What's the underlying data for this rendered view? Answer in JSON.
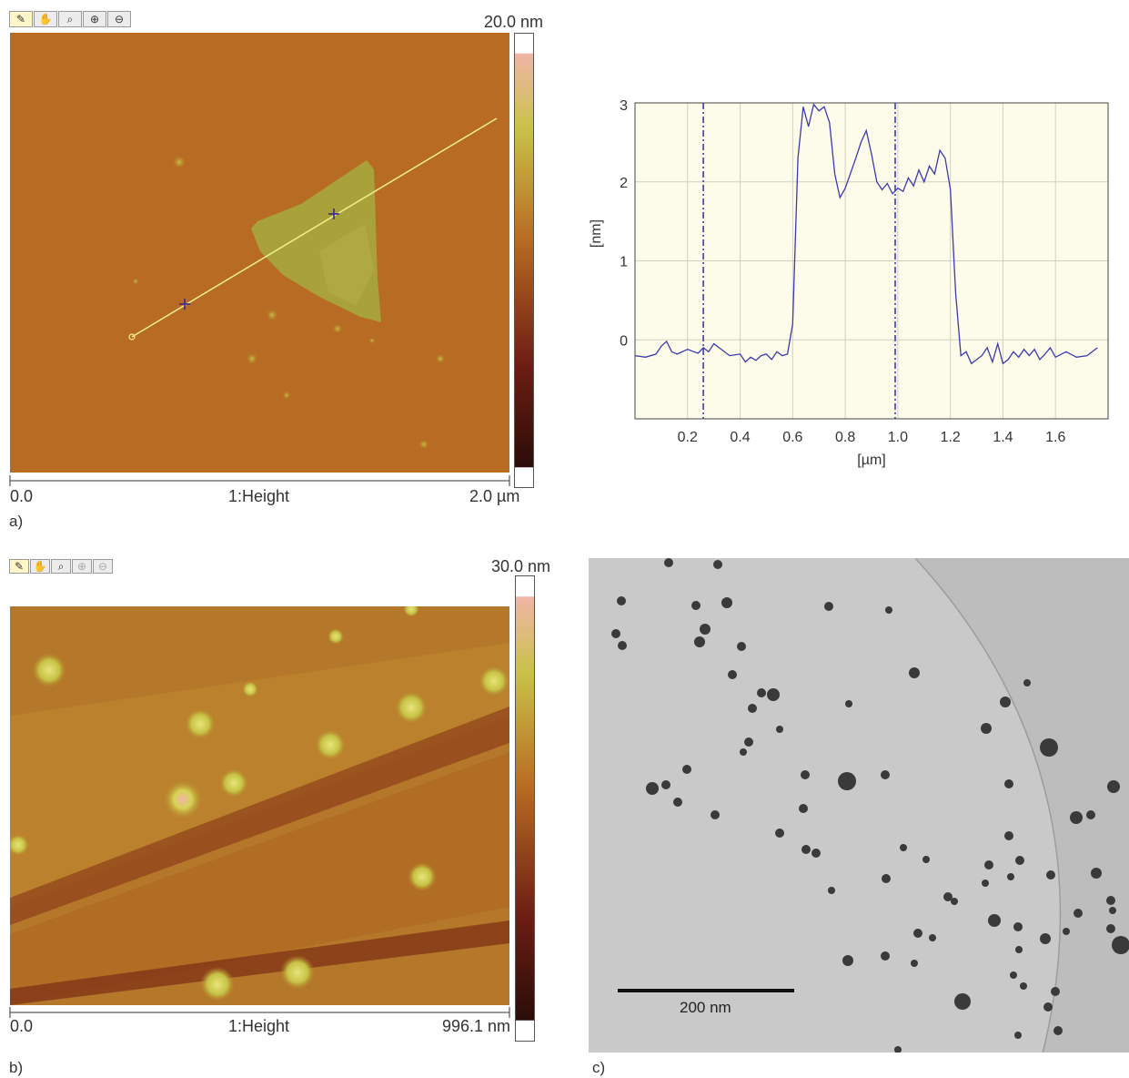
{
  "panel_a": {
    "letter": "a)",
    "toolbar_icons": [
      "ruler-icon",
      "hand-icon",
      "magnifier-icon",
      "zoom-in-icon",
      "zoom-out-icon"
    ],
    "scale_max": "20.0 nm",
    "axis_start": "0.0",
    "axis_title": "1:Height",
    "axis_end": "2.0 µm"
  },
  "profile": {
    "x_label": "[µm]",
    "y_label": "[nm]",
    "x_ticks": [
      "0.2",
      "0.4",
      "0.6",
      "0.8",
      "1.0",
      "1.2",
      "1.4",
      "1.6"
    ],
    "y_ticks": [
      "0",
      "1",
      "2",
      "3"
    ]
  },
  "chart_data": {
    "type": "line",
    "xlabel": "[µm]",
    "ylabel": "[nm]",
    "xlim": [
      0.0,
      1.8
    ],
    "ylim": [
      -1.0,
      3.0
    ],
    "grid": true,
    "markers": [
      0.26,
      0.99
    ],
    "series": [
      {
        "color": "#3b3bb0",
        "x": [
          0.0,
          0.04,
          0.08,
          0.1,
          0.12,
          0.14,
          0.16,
          0.2,
          0.24,
          0.26,
          0.28,
          0.3,
          0.32,
          0.36,
          0.4,
          0.42,
          0.44,
          0.46,
          0.48,
          0.5,
          0.52,
          0.54,
          0.56,
          0.58,
          0.6,
          0.62,
          0.64,
          0.66,
          0.68,
          0.7,
          0.72,
          0.74,
          0.76,
          0.78,
          0.8,
          0.84,
          0.86,
          0.88,
          0.9,
          0.92,
          0.94,
          0.96,
          0.98,
          1.0,
          1.02,
          1.04,
          1.06,
          1.08,
          1.1,
          1.12,
          1.14,
          1.16,
          1.18,
          1.2,
          1.22,
          1.24,
          1.26,
          1.28,
          1.3,
          1.32,
          1.34,
          1.36,
          1.38,
          1.4,
          1.42,
          1.44,
          1.46,
          1.48,
          1.5,
          1.52,
          1.54,
          1.56,
          1.58,
          1.6,
          1.64,
          1.68,
          1.72,
          1.76
        ],
        "values": [
          -0.2,
          -0.22,
          -0.18,
          -0.08,
          -0.02,
          -0.15,
          -0.18,
          -0.12,
          -0.17,
          -0.1,
          -0.15,
          -0.05,
          -0.1,
          -0.2,
          -0.18,
          -0.28,
          -0.22,
          -0.26,
          -0.2,
          -0.18,
          -0.25,
          -0.15,
          -0.2,
          -0.18,
          0.2,
          2.3,
          2.95,
          2.7,
          2.98,
          2.9,
          2.95,
          2.75,
          2.1,
          1.8,
          1.92,
          2.3,
          2.5,
          2.65,
          2.35,
          2.0,
          1.9,
          1.98,
          1.85,
          1.92,
          1.88,
          2.05,
          1.95,
          2.15,
          2.0,
          2.2,
          2.1,
          2.4,
          2.3,
          1.9,
          0.6,
          -0.2,
          -0.15,
          -0.3,
          -0.25,
          -0.2,
          -0.1,
          -0.28,
          -0.05,
          -0.3,
          -0.25,
          -0.15,
          -0.22,
          -0.12,
          -0.2,
          -0.12,
          -0.25,
          -0.18,
          -0.1,
          -0.22,
          -0.15,
          -0.22,
          -0.2,
          -0.1
        ]
      }
    ]
  },
  "panel_b": {
    "letter": "b)",
    "toolbar_icons": [
      "ruler-icon",
      "hand-icon",
      "magnifier-icon",
      "zoom-in-icon",
      "zoom-out-icon"
    ],
    "scale_max": "30.0 nm",
    "axis_start": "0.0",
    "axis_title": "1:Height",
    "axis_end": "996.1 nm"
  },
  "panel_c": {
    "letter": "c)",
    "scale_bar_label": "200 nm"
  }
}
